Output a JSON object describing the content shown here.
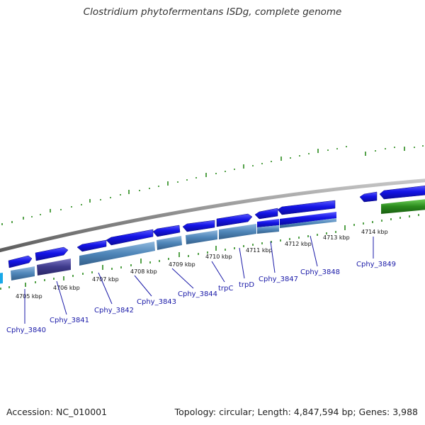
{
  "title": "Clostridium phytofermentans ISDg, complete genome",
  "footer": {
    "accession": "Accession: NC_010001",
    "summary": "Topology: circular; Length: 4,847,594 bp; Genes: 3,988"
  },
  "colors": {
    "backbone": "#8a8a8a",
    "forward_gene": "#1414e6",
    "reverse_gene": "#4f86b9",
    "reverse_gene_dark": "#3e3a8a",
    "rna_gene": "#2a8a1c",
    "tick": "#2a8a1c",
    "label": "#1a1aa8"
  },
  "kbp_ticks": [
    "4705 kbp",
    "4706 kbp",
    "4707 kbp",
    "4708 kbp",
    "4709 kbp",
    "4710 kbp",
    "4711 kbp",
    "4712 kbp",
    "4713 kbp",
    "4714 kbp"
  ],
  "gene_labels": [
    "Cphy_3840",
    "Cphy_3841",
    "Cphy_3842",
    "Cphy_3843",
    "Cphy_3844",
    "trpC",
    "trpD",
    "Cphy_3847",
    "Cphy_3848",
    "Cphy_3849"
  ]
}
